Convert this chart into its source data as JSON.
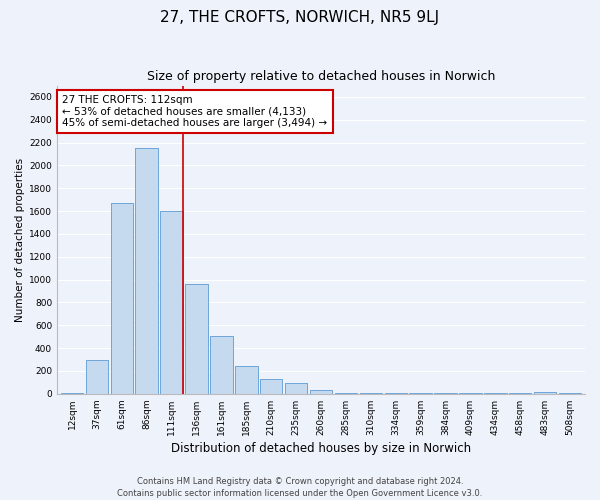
{
  "title": "27, THE CROFTS, NORWICH, NR5 9LJ",
  "subtitle": "Size of property relative to detached houses in Norwich",
  "xlabel": "Distribution of detached houses by size in Norwich",
  "ylabel": "Number of detached properties",
  "bar_labels": [
    "12sqm",
    "37sqm",
    "61sqm",
    "86sqm",
    "111sqm",
    "136sqm",
    "161sqm",
    "185sqm",
    "210sqm",
    "235sqm",
    "260sqm",
    "285sqm",
    "310sqm",
    "334sqm",
    "359sqm",
    "384sqm",
    "409sqm",
    "434sqm",
    "458sqm",
    "483sqm",
    "508sqm"
  ],
  "bar_values": [
    10,
    295,
    1675,
    2150,
    1600,
    960,
    505,
    240,
    130,
    95,
    30,
    5,
    5,
    5,
    5,
    5,
    5,
    5,
    5,
    15,
    5
  ],
  "bar_color": "#c5d9ef",
  "bar_edge_color": "#5b9bd5",
  "background_color": "#eef2fa",
  "grid_color": "#ffffff",
  "marker_line_color": "#cc0000",
  "annotation_text": "27 THE CROFTS: 112sqm\n← 53% of detached houses are smaller (4,133)\n45% of semi-detached houses are larger (3,494) →",
  "annotation_box_color": "#ffffff",
  "annotation_box_edge": "#cc0000",
  "ylim": [
    0,
    2700
  ],
  "yticks": [
    0,
    200,
    400,
    600,
    800,
    1000,
    1200,
    1400,
    1600,
    1800,
    2000,
    2200,
    2400,
    2600
  ],
  "footer_text": "Contains HM Land Registry data © Crown copyright and database right 2024.\nContains public sector information licensed under the Open Government Licence v3.0.",
  "title_fontsize": 11,
  "subtitle_fontsize": 9,
  "xlabel_fontsize": 8.5,
  "ylabel_fontsize": 7.5,
  "tick_fontsize": 6.5,
  "annotation_fontsize": 7.5,
  "footer_fontsize": 6.0
}
